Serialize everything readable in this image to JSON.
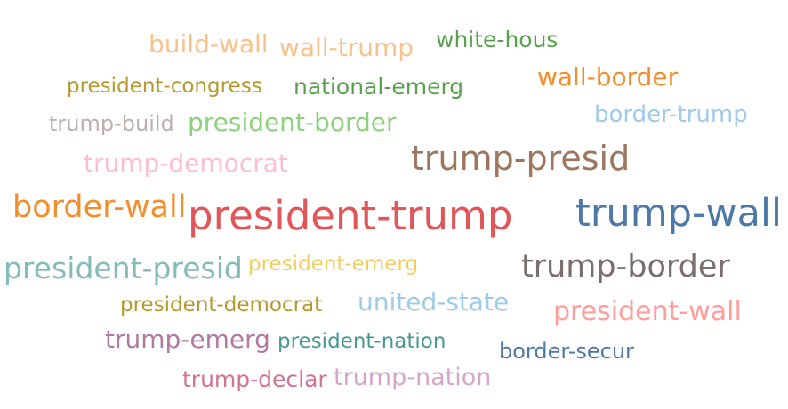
{
  "words": [
    {
      "text": "build-wall",
      "color": "#f9c28a"
    },
    {
      "text": "wall-trump",
      "color": "#f9c28a"
    },
    {
      "text": "white-hous",
      "color": "#59a14f"
    },
    {
      "text": "president-congress",
      "color": "#b39a2e"
    },
    {
      "text": "national-emerg",
      "color": "#59a14f"
    },
    {
      "text": "wall-border",
      "color": "#f28e2b"
    },
    {
      "text": "trump-build",
      "color": "#bab0ac"
    },
    {
      "text": "president-border",
      "color": "#8cd17d"
    },
    {
      "text": "border-trump",
      "color": "#a0cbe8"
    },
    {
      "text": "trump-democrat",
      "color": "#fabfd2"
    },
    {
      "text": "trump-presid",
      "color": "#9d7660"
    },
    {
      "text": "border-wall",
      "color": "#f28e2b"
    },
    {
      "text": "president-trump",
      "color": "#e15759"
    },
    {
      "text": "trump-wall",
      "color": "#4e79a7"
    },
    {
      "text": "president-presid",
      "color": "#86bcb6"
    },
    {
      "text": "president-emerg",
      "color": "#f1ce63"
    },
    {
      "text": "trump-border",
      "color": "#79706e"
    },
    {
      "text": "president-democrat",
      "color": "#b6992d"
    },
    {
      "text": "united-state",
      "color": "#a0cbe8"
    },
    {
      "text": "president-wall",
      "color": "#ff9d9a"
    },
    {
      "text": "trump-emerg",
      "color": "#b07aa1"
    },
    {
      "text": "president-nation",
      "color": "#499894"
    },
    {
      "text": "border-secur",
      "color": "#4e79a7"
    },
    {
      "text": "trump-declar",
      "color": "#d37295"
    },
    {
      "text": "trump-nation",
      "color": "#d4a6c8"
    }
  ]
}
